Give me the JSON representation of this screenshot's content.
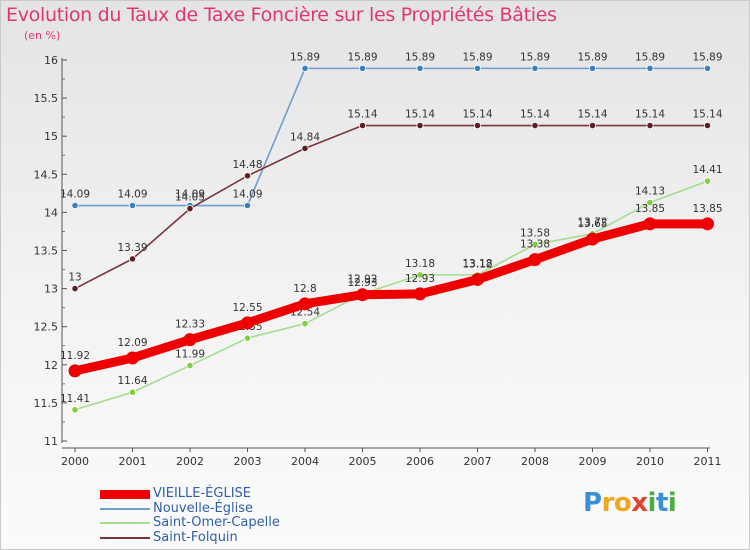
{
  "page": {
    "title": "Evolution du Taux de Taxe Foncière sur les Propriétés Bâties",
    "subtitle": "(en %)"
  },
  "logo": {
    "text": "Proxiti",
    "letters": [
      {
        "ch": "P",
        "color": "#3a8fd6"
      },
      {
        "ch": "r",
        "color": "#f2a51e"
      },
      {
        "ch": "o",
        "color": "#f2a51e"
      },
      {
        "ch": "x",
        "color": "#e2412f"
      },
      {
        "ch": "i",
        "color": "#4aaf3f"
      },
      {
        "ch": "t",
        "color": "#3a8fd6"
      },
      {
        "ch": "i",
        "color": "#4aaf3f"
      }
    ]
  },
  "chart_data": {
    "type": "line",
    "title": "Evolution du Taux de Taxe Foncière sur les Propriétés Bâties",
    "ylabel": "(en %)",
    "xlabel": "",
    "categories": [
      "2000",
      "2001",
      "2002",
      "2003",
      "2004",
      "2005",
      "2006",
      "2007",
      "2008",
      "2009",
      "2010",
      "2011"
    ],
    "ylim": [
      11,
      16
    ],
    "yticks": [
      "11",
      "11.5",
      "12",
      "12.5",
      "13",
      "13.5",
      "14",
      "14.5",
      "15",
      "15.5",
      "16"
    ],
    "grid": false,
    "legend_position": "bottom-left",
    "series": [
      {
        "name": "Nouvelle-Église",
        "color": "#6a9fd0",
        "marker": "#3a7fbf",
        "values": [
          14.09,
          14.09,
          14.09,
          14.09,
          15.89,
          15.89,
          15.89,
          15.89,
          15.89,
          15.89,
          15.89,
          15.89
        ],
        "labels": [
          "14.09",
          "14.09",
          "14.09",
          "14.09",
          "15.89",
          "15.89",
          "15.89",
          "15.89",
          "15.89",
          "15.89",
          "15.89",
          "15.89"
        ]
      },
      {
        "name": "Saint-Folquin",
        "color": "#7a3538",
        "marker": "#5c1f22",
        "values": [
          13,
          13.39,
          14.05,
          14.48,
          14.84,
          15.14,
          15.14,
          15.14,
          15.14,
          15.14,
          15.14,
          15.14
        ],
        "labels": [
          "13",
          "13.39",
          "14.05",
          "14.48",
          "14.84",
          "15.14",
          "15.14",
          "15.14",
          "15.14",
          "15.14",
          "15.14",
          "15.14"
        ]
      },
      {
        "name": "Saint-Omer-Capelle",
        "color": "#a6dc8e",
        "marker": "#7fcf3e",
        "values": [
          11.41,
          11.64,
          11.99,
          12.35,
          12.54,
          12.93,
          13.18,
          13.18,
          13.58,
          13.72,
          14.13,
          14.41
        ],
        "labels": [
          "11.41",
          "11.64",
          "11.99",
          "12.35",
          "12.54",
          "12.93",
          "13.18",
          "13.18",
          "13.58",
          "13.72",
          "14.13",
          "14.41"
        ]
      },
      {
        "name": "VIEILLE-ÉGLISE",
        "color": "#ee0000",
        "marker": "#ee0000",
        "values": [
          11.92,
          12.09,
          12.33,
          12.55,
          12.8,
          12.92,
          12.93,
          13.12,
          13.38,
          13.65,
          13.85,
          13.85
        ],
        "labels": [
          "11.92",
          "12.09",
          "12.33",
          "12.55",
          "12.8",
          "12.92",
          "12.93",
          "13.12",
          "13.38",
          "13.65",
          "13.85",
          "13.85"
        ]
      }
    ],
    "legend": [
      {
        "name": "VIEILLE-ÉGLISE",
        "color": "#ee0000"
      },
      {
        "name": "Nouvelle-Église",
        "color": "#6a9fd0"
      },
      {
        "name": "Saint-Omer-Capelle",
        "color": "#a6dc8e"
      },
      {
        "name": "Saint-Folquin",
        "color": "#7a3538"
      }
    ]
  }
}
